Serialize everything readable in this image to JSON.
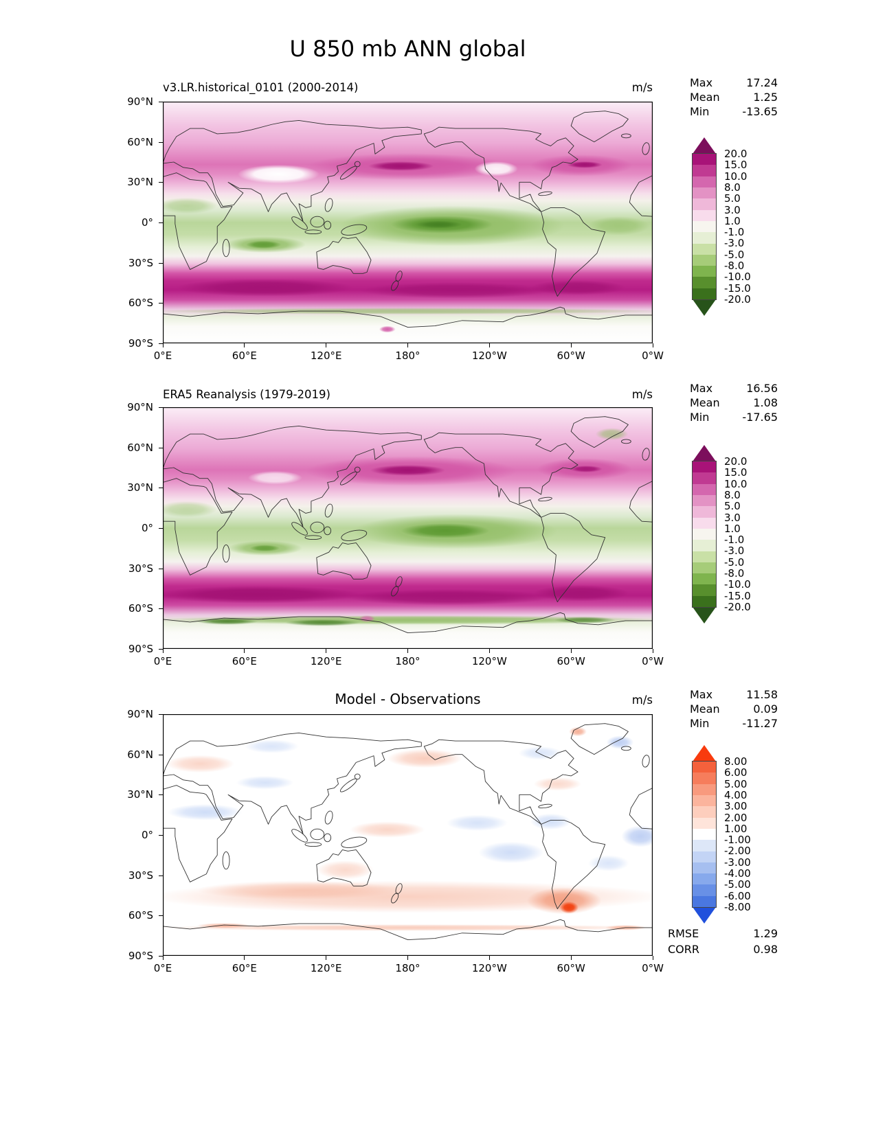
{
  "figure": {
    "title": "U 850 mb ANN global"
  },
  "axes": {
    "lat_ticks": [
      "90°N",
      "60°N",
      "30°N",
      "0°",
      "30°S",
      "60°S",
      "90°S"
    ],
    "lon_ticks": [
      "0°E",
      "60°E",
      "120°E",
      "180°",
      "120°W",
      "60°W",
      "0°W"
    ]
  },
  "panels": [
    {
      "title": "v3.LR.historical_0101 (2000-2014)",
      "units": "m/s",
      "stats": [
        {
          "label": "Max",
          "value": "17.24"
        },
        {
          "label": "Mean",
          "value": "1.25"
        },
        {
          "label": "Min",
          "value": "-13.65"
        }
      ],
      "colorbar": {
        "ticks": [
          "20.0",
          "15.0",
          "10.0",
          "8.0",
          "5.0",
          "3.0",
          "1.0",
          "-1.0",
          "-3.0",
          "-5.0",
          "-8.0",
          "-10.0",
          "-15.0",
          "-20.0"
        ],
        "colors": [
          "#7c0e5c",
          "#a81378",
          "#c03a92",
          "#d467ae",
          "#e392c4",
          "#efb8d9",
          "#f8dcec",
          "#f7f5ef",
          "#e6efd5",
          "#c9e0a6",
          "#a6cc79",
          "#7fb44e",
          "#588f2d",
          "#3a701c",
          "#27531a"
        ]
      }
    },
    {
      "title": "ERA5 Reanalysis (1979-2019)",
      "units": "m/s",
      "stats": [
        {
          "label": "Max",
          "value": "16.56"
        },
        {
          "label": "Mean",
          "value": "1.08"
        },
        {
          "label": "Min",
          "value": "-17.65"
        }
      ],
      "colorbar": {
        "ticks": [
          "20.0",
          "15.0",
          "10.0",
          "8.0",
          "5.0",
          "3.0",
          "1.0",
          "-1.0",
          "-3.0",
          "-5.0",
          "-8.0",
          "-10.0",
          "-15.0",
          "-20.0"
        ],
        "colors": [
          "#7c0e5c",
          "#a81378",
          "#c03a92",
          "#d467ae",
          "#e392c4",
          "#efb8d9",
          "#f8dcec",
          "#f7f5ef",
          "#e6efd5",
          "#c9e0a6",
          "#a6cc79",
          "#7fb44e",
          "#588f2d",
          "#3a701c",
          "#27531a"
        ]
      }
    },
    {
      "title": "Model - Observations",
      "units": "m/s",
      "stats": [
        {
          "label": "Max",
          "value": "11.58"
        },
        {
          "label": "Mean",
          "value": "0.09"
        },
        {
          "label": "Min",
          "value": "-11.27"
        }
      ],
      "metrics": [
        {
          "label": "RMSE",
          "value": "1.29"
        },
        {
          "label": "CORR",
          "value": "0.98"
        }
      ],
      "colorbar": {
        "ticks": [
          "8.00",
          "6.00",
          "5.00",
          "4.00",
          "3.00",
          "2.00",
          "1.00",
          "-1.00",
          "-2.00",
          "-3.00",
          "-4.00",
          "-5.00",
          "-6.00",
          "-8.00"
        ],
        "colors": [
          "#f83b0e",
          "#f4613c",
          "#f67d5c",
          "#f89a7e",
          "#fbb49d",
          "#fdcebd",
          "#fee4da",
          "#ffffff",
          "#dde7f8",
          "#c3d4f5",
          "#a6bff0",
          "#87a9ec",
          "#6890e6",
          "#4a77e0",
          "#2050dc"
        ]
      }
    }
  ],
  "chart_data": [
    {
      "type": "heatmap",
      "subtype": "filled-contour-global-map",
      "variable": "U 850 mb",
      "season": "ANN",
      "region": "global",
      "title": "v3.LR.historical_0101 (2000-2014)",
      "units": "m/s",
      "x_ticks": [
        "0°E",
        "60°E",
        "120°E",
        "180°",
        "120°W",
        "60°W",
        "0°W"
      ],
      "y_ticks": [
        "90°N",
        "60°N",
        "30°N",
        "0°",
        "30°S",
        "60°S",
        "90°S"
      ],
      "contour_levels": [
        -20,
        -15,
        -10,
        -8,
        -5,
        -3,
        -1,
        1,
        3,
        5,
        8,
        10,
        15,
        20
      ],
      "colormap": "diverging magenta(positive)/green(negative)",
      "stats": {
        "max": 17.24,
        "mean": 1.25,
        "min": -13.65
      },
      "pattern": "magenta westerly bands 30-60N and strong 35-60S jet; green tropical easterlies peaking over central Pacific and south Indian Ocean"
    },
    {
      "type": "heatmap",
      "subtype": "filled-contour-global-map",
      "variable": "U 850 mb",
      "season": "ANN",
      "region": "global",
      "title": "ERA5 Reanalysis (1979-2019)",
      "units": "m/s",
      "x_ticks": [
        "0°E",
        "60°E",
        "120°E",
        "180°",
        "120°W",
        "60°W",
        "0°W"
      ],
      "y_ticks": [
        "90°N",
        "60°N",
        "30°N",
        "0°",
        "30°S",
        "60°S",
        "90°S"
      ],
      "contour_levels": [
        -20,
        -15,
        -10,
        -8,
        -5,
        -3,
        -1,
        1,
        3,
        5,
        8,
        10,
        15,
        20
      ],
      "colormap": "diverging magenta(positive)/green(negative)",
      "stats": {
        "max": 16.56,
        "mean": 1.08,
        "min": -17.65
      },
      "pattern": "same structure as model with dark green katabatic easterlies along Antarctic coast"
    },
    {
      "type": "heatmap",
      "subtype": "difference-map",
      "variable": "U 850 mb",
      "season": "ANN",
      "region": "global",
      "title": "Model - Observations",
      "units": "m/s",
      "x_ticks": [
        "0°E",
        "60°E",
        "120°E",
        "180°",
        "120°W",
        "60°W",
        "0°W"
      ],
      "y_ticks": [
        "90°N",
        "60°N",
        "30°N",
        "0°",
        "30°S",
        "60°S",
        "90°S"
      ],
      "contour_levels": [
        -8,
        -6,
        -5,
        -4,
        -3,
        -2,
        -1,
        1,
        2,
        3,
        4,
        5,
        6,
        8
      ],
      "colormap": "diverging red(positive)/blue(negative)",
      "stats": {
        "max": 11.58,
        "mean": 0.09,
        "min": -11.27,
        "rmse": 1.29,
        "corr": 0.98
      },
      "pattern": "mostly near zero; weak positive band over Southern Ocean with strong positive anomaly near southern South America; scattered weak negative patches in tropics and northern subtropics"
    }
  ]
}
